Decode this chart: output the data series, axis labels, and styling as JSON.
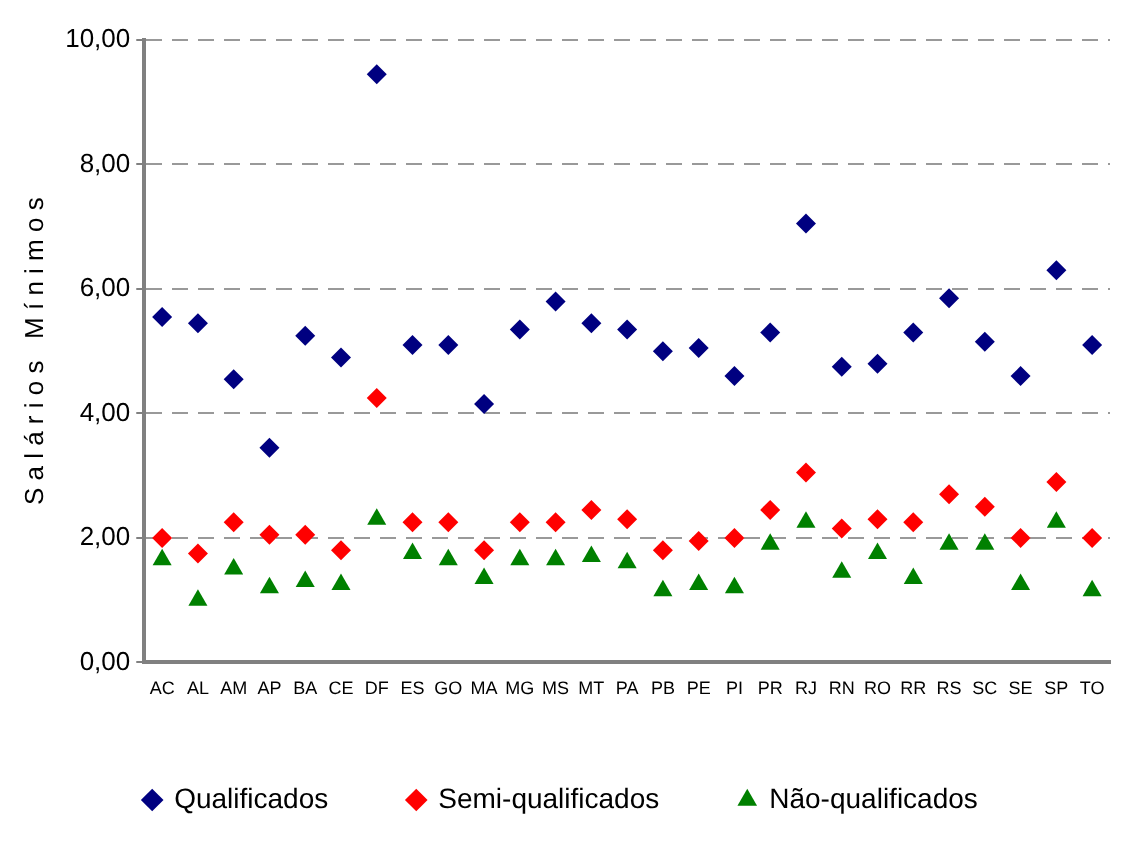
{
  "chart_data": {
    "type": "scatter",
    "ylabel": "S a l á r i o s   M í n i m o s",
    "categories": [
      "AC",
      "AL",
      "AM",
      "AP",
      "BA",
      "CE",
      "DF",
      "ES",
      "GO",
      "MA",
      "MG",
      "MS",
      "MT",
      "PA",
      "PB",
      "PE",
      "PI",
      "PR",
      "RJ",
      "RN",
      "RO",
      "RR",
      "RS",
      "SC",
      "SE",
      "SP",
      "TO"
    ],
    "series": [
      {
        "name": "Qualificados",
        "color": "#000080",
        "marker": "diamond",
        "values": [
          5.55,
          5.45,
          4.55,
          3.45,
          5.25,
          4.9,
          9.45,
          5.1,
          5.1,
          4.15,
          5.35,
          5.8,
          5.45,
          5.35,
          5.0,
          5.05,
          4.6,
          5.3,
          7.05,
          4.75,
          4.8,
          5.3,
          5.85,
          5.15,
          4.6,
          6.3,
          5.1
        ]
      },
      {
        "name": "Semi-qualificados",
        "color": "#ff0000",
        "marker": "diamond",
        "values": [
          2.0,
          1.75,
          2.25,
          2.05,
          2.05,
          1.8,
          4.25,
          2.25,
          2.25,
          1.8,
          2.25,
          2.25,
          2.45,
          2.3,
          1.8,
          1.95,
          2.0,
          2.45,
          3.05,
          2.15,
          2.3,
          2.25,
          2.7,
          2.5,
          2.0,
          2.9,
          2.0
        ]
      },
      {
        "name": "Não-qualificados",
        "color": "#008000",
        "marker": "triangle",
        "values": [
          1.65,
          1.0,
          1.5,
          1.2,
          1.3,
          1.25,
          2.3,
          1.75,
          1.65,
          1.35,
          1.65,
          1.65,
          1.7,
          1.6,
          1.15,
          1.25,
          1.2,
          1.9,
          2.25,
          1.45,
          1.75,
          1.35,
          1.9,
          1.9,
          1.25,
          2.25,
          1.15
        ]
      }
    ],
    "ylim": [
      0,
      10
    ],
    "yticks": [
      {
        "value": 0,
        "label": "0,00"
      },
      {
        "value": 2,
        "label": "2,00"
      },
      {
        "value": 4,
        "label": "4,00"
      },
      {
        "value": 6,
        "label": "6,00"
      },
      {
        "value": 8,
        "label": "8,00"
      },
      {
        "value": 10,
        "label": "10,00"
      }
    ],
    "grid": "y",
    "line_style": "dashed",
    "legend": "bottom"
  }
}
